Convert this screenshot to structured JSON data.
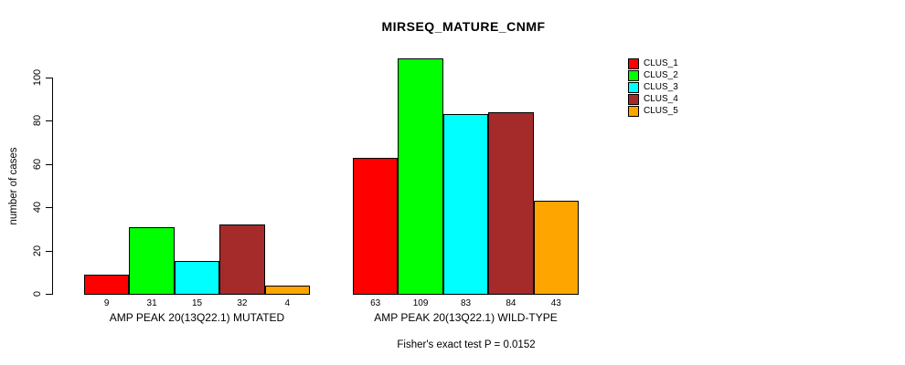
{
  "title": "MIRSEQ_MATURE_CNMF",
  "chart_data": {
    "type": "bar",
    "title": "MIRSEQ_MATURE_CNMF",
    "xlabel": "",
    "ylabel": "number of cases",
    "yticks": [
      0,
      20,
      40,
      60,
      80,
      100
    ],
    "ylim": [
      0,
      109
    ],
    "grid": false,
    "legend_position": "top-right",
    "categories": [
      "AMP PEAK 20(13Q22.1) MUTATED",
      "AMP PEAK 20(13Q22.1) WILD-TYPE"
    ],
    "series": [
      {
        "name": "CLUS_1",
        "color": "#FF0000",
        "values": [
          9,
          63
        ]
      },
      {
        "name": "CLUS_2",
        "color": "#00FF00",
        "values": [
          31,
          109
        ]
      },
      {
        "name": "CLUS_3",
        "color": "#00FFFF",
        "values": [
          15,
          83
        ]
      },
      {
        "name": "CLUS_4",
        "color": "#A52A2A",
        "values": [
          32,
          84
        ]
      },
      {
        "name": "CLUS_5",
        "color": "#FFA500",
        "values": [
          4,
          43
        ]
      }
    ],
    "bar_value_labels": true,
    "annotation": "Fisher's exact test P = 0.0152"
  }
}
